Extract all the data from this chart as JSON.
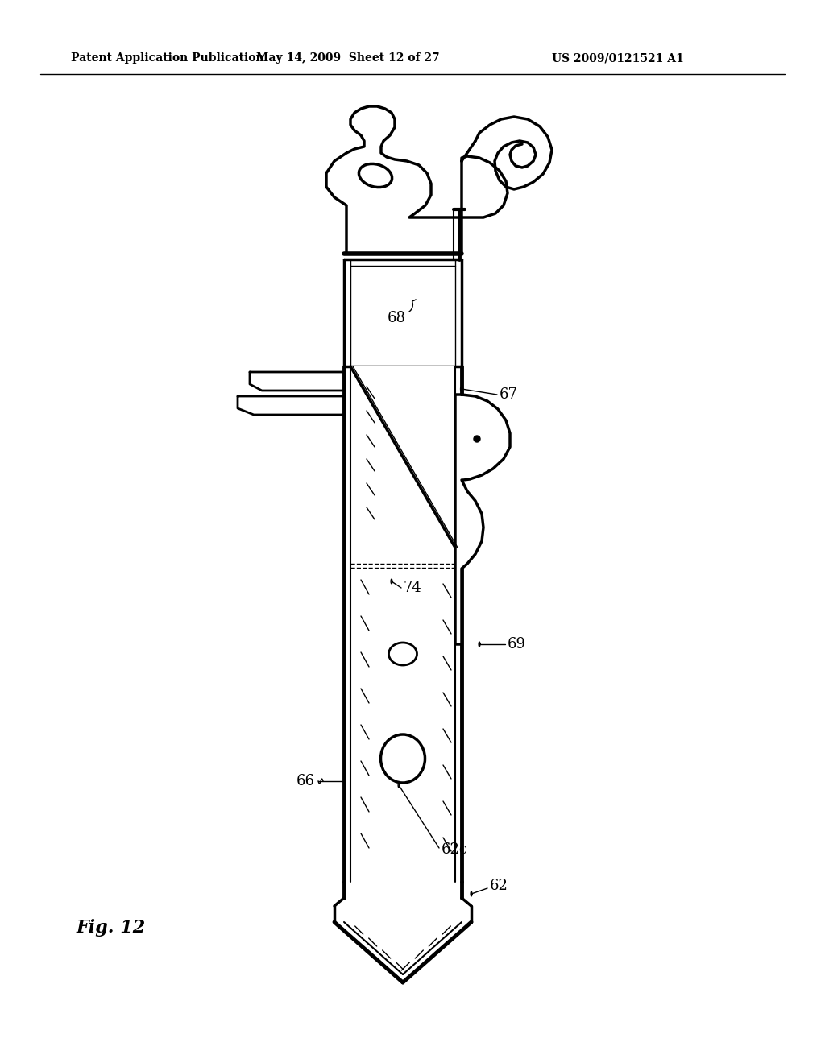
{
  "background_color": "#ffffff",
  "header_left": "Patent Application Publication",
  "header_center": "May 14, 2009  Sheet 12 of 27",
  "header_right": "US 2009/0121521 A1",
  "fig_label": "Fig. 12"
}
